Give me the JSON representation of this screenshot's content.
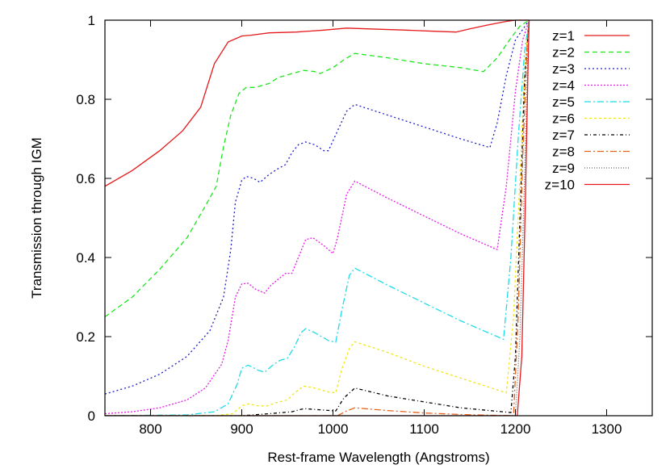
{
  "chart_data": {
    "type": "line",
    "title": "",
    "xlabel": "Rest-frame Wavelength (Angstroms)",
    "ylabel": "Transmission through IGM",
    "xlim": [
      750,
      1350
    ],
    "ylim": [
      0,
      1
    ],
    "xticks": [
      800,
      900,
      1000,
      1100,
      1200,
      1300
    ],
    "yticks": [
      0,
      0.2,
      0.4,
      0.6,
      0.8,
      1
    ],
    "ytick_labels": [
      "0",
      "0.2",
      "0.4",
      "0.6",
      "0.8",
      "1"
    ],
    "grid": false,
    "legend_position": "top-right",
    "series": [
      {
        "name": "z=1",
        "color": "#e41a1c",
        "dash": "solid",
        "points": [
          [
            750,
            0.58
          ],
          [
            780,
            0.62
          ],
          [
            810,
            0.67
          ],
          [
            835,
            0.72
          ],
          [
            855,
            0.78
          ],
          [
            870,
            0.89
          ],
          [
            885,
            0.945
          ],
          [
            900,
            0.96
          ],
          [
            910,
            0.962
          ],
          [
            930,
            0.968
          ],
          [
            960,
            0.97
          ],
          [
            990,
            0.975
          ],
          [
            1015,
            0.98
          ],
          [
            1040,
            0.978
          ],
          [
            1080,
            0.975
          ],
          [
            1110,
            0.972
          ],
          [
            1135,
            0.97
          ],
          [
            1150,
            0.978
          ],
          [
            1170,
            0.988
          ],
          [
            1190,
            0.997
          ],
          [
            1200,
            1.0
          ],
          [
            1215,
            1.0
          ]
        ]
      },
      {
        "name": "z=2",
        "color": "#1ee61e",
        "dash": "6,4",
        "points": [
          [
            750,
            0.25
          ],
          [
            780,
            0.3
          ],
          [
            810,
            0.37
          ],
          [
            840,
            0.45
          ],
          [
            860,
            0.53
          ],
          [
            872,
            0.58
          ],
          [
            880,
            0.68
          ],
          [
            888,
            0.76
          ],
          [
            897,
            0.815
          ],
          [
            905,
            0.83
          ],
          [
            915,
            0.83
          ],
          [
            930,
            0.84
          ],
          [
            940,
            0.855
          ],
          [
            955,
            0.865
          ],
          [
            968,
            0.873
          ],
          [
            980,
            0.87
          ],
          [
            986,
            0.865
          ],
          [
            1000,
            0.88
          ],
          [
            1012,
            0.9
          ],
          [
            1024,
            0.916
          ],
          [
            1060,
            0.905
          ],
          [
            1100,
            0.89
          ],
          [
            1140,
            0.88
          ],
          [
            1165,
            0.87
          ],
          [
            1180,
            0.905
          ],
          [
            1195,
            0.955
          ],
          [
            1205,
            0.985
          ],
          [
            1215,
            1.0
          ]
        ]
      },
      {
        "name": "z=3",
        "color": "#1e1ec8",
        "dash": "2,3",
        "points": [
          [
            750,
            0.055
          ],
          [
            780,
            0.075
          ],
          [
            810,
            0.105
          ],
          [
            840,
            0.15
          ],
          [
            865,
            0.215
          ],
          [
            880,
            0.3
          ],
          [
            888,
            0.42
          ],
          [
            893,
            0.54
          ],
          [
            900,
            0.595
          ],
          [
            905,
            0.605
          ],
          [
            913,
            0.6
          ],
          [
            920,
            0.59
          ],
          [
            930,
            0.61
          ],
          [
            940,
            0.625
          ],
          [
            948,
            0.635
          ],
          [
            955,
            0.665
          ],
          [
            962,
            0.685
          ],
          [
            970,
            0.692
          ],
          [
            980,
            0.685
          ],
          [
            990,
            0.67
          ],
          [
            995,
            0.67
          ],
          [
            1005,
            0.72
          ],
          [
            1015,
            0.77
          ],
          [
            1024,
            0.787
          ],
          [
            1060,
            0.76
          ],
          [
            1100,
            0.73
          ],
          [
            1140,
            0.7
          ],
          [
            1172,
            0.678
          ],
          [
            1180,
            0.74
          ],
          [
            1190,
            0.86
          ],
          [
            1200,
            0.95
          ],
          [
            1215,
            1.0
          ]
        ]
      },
      {
        "name": "z=4",
        "color": "#e61ee6",
        "dash": "2,2",
        "points": [
          [
            750,
            0.005
          ],
          [
            780,
            0.01
          ],
          [
            810,
            0.02
          ],
          [
            840,
            0.04
          ],
          [
            860,
            0.07
          ],
          [
            878,
            0.13
          ],
          [
            885,
            0.19
          ],
          [
            893,
            0.3
          ],
          [
            900,
            0.333
          ],
          [
            907,
            0.335
          ],
          [
            915,
            0.32
          ],
          [
            925,
            0.31
          ],
          [
            932,
            0.33
          ],
          [
            940,
            0.345
          ],
          [
            948,
            0.36
          ],
          [
            955,
            0.36
          ],
          [
            962,
            0.4
          ],
          [
            970,
            0.445
          ],
          [
            978,
            0.45
          ],
          [
            990,
            0.43
          ],
          [
            1000,
            0.41
          ],
          [
            1005,
            0.45
          ],
          [
            1015,
            0.56
          ],
          [
            1024,
            0.593
          ],
          [
            1060,
            0.55
          ],
          [
            1100,
            0.505
          ],
          [
            1140,
            0.46
          ],
          [
            1180,
            0.42
          ],
          [
            1190,
            0.58
          ],
          [
            1200,
            0.82
          ],
          [
            1208,
            0.95
          ],
          [
            1215,
            1.0
          ]
        ]
      },
      {
        "name": "z=5",
        "color": "#1edce6",
        "dash": "8,3,2,3",
        "points": [
          [
            750,
            0.0
          ],
          [
            840,
            0.002
          ],
          [
            870,
            0.01
          ],
          [
            885,
            0.03
          ],
          [
            895,
            0.08
          ],
          [
            900,
            0.12
          ],
          [
            907,
            0.128
          ],
          [
            918,
            0.115
          ],
          [
            925,
            0.11
          ],
          [
            935,
            0.13
          ],
          [
            942,
            0.14
          ],
          [
            950,
            0.145
          ],
          [
            958,
            0.175
          ],
          [
            965,
            0.21
          ],
          [
            970,
            0.22
          ],
          [
            980,
            0.21
          ],
          [
            995,
            0.19
          ],
          [
            1003,
            0.186
          ],
          [
            1010,
            0.27
          ],
          [
            1018,
            0.355
          ],
          [
            1024,
            0.373
          ],
          [
            1060,
            0.33
          ],
          [
            1100,
            0.285
          ],
          [
            1140,
            0.24
          ],
          [
            1187,
            0.193
          ],
          [
            1195,
            0.4
          ],
          [
            1203,
            0.7
          ],
          [
            1210,
            0.92
          ],
          [
            1215,
            1.0
          ]
        ]
      },
      {
        "name": "z=6",
        "color": "#f0e61e",
        "dash": "3,3",
        "points": [
          [
            750,
            0.0
          ],
          [
            870,
            0.0
          ],
          [
            890,
            0.005
          ],
          [
            900,
            0.025
          ],
          [
            907,
            0.03
          ],
          [
            918,
            0.025
          ],
          [
            928,
            0.025
          ],
          [
            938,
            0.033
          ],
          [
            950,
            0.04
          ],
          [
            958,
            0.058
          ],
          [
            968,
            0.075
          ],
          [
            980,
            0.07
          ],
          [
            995,
            0.06
          ],
          [
            1003,
            0.058
          ],
          [
            1010,
            0.12
          ],
          [
            1018,
            0.17
          ],
          [
            1024,
            0.187
          ],
          [
            1060,
            0.16
          ],
          [
            1100,
            0.125
          ],
          [
            1140,
            0.095
          ],
          [
            1190,
            0.058
          ],
          [
            1198,
            0.25
          ],
          [
            1205,
            0.6
          ],
          [
            1210,
            0.88
          ],
          [
            1215,
            1.0
          ]
        ]
      },
      {
        "name": "z=7",
        "color": "#000000",
        "dash": "4,3,1,3",
        "points": [
          [
            750,
            0.0
          ],
          [
            900,
            0.0
          ],
          [
            930,
            0.005
          ],
          [
            955,
            0.01
          ],
          [
            968,
            0.018
          ],
          [
            985,
            0.015
          ],
          [
            1003,
            0.012
          ],
          [
            1012,
            0.045
          ],
          [
            1024,
            0.07
          ],
          [
            1060,
            0.05
          ],
          [
            1100,
            0.035
          ],
          [
            1140,
            0.02
          ],
          [
            1195,
            0.008
          ],
          [
            1200,
            0.15
          ],
          [
            1205,
            0.5
          ],
          [
            1210,
            0.85
          ],
          [
            1215,
            1.0
          ]
        ]
      },
      {
        "name": "z=8",
        "color": "#e6641e",
        "dash": "8,3,2,3",
        "points": [
          [
            750,
            0.0
          ],
          [
            1005,
            0.0
          ],
          [
            1015,
            0.012
          ],
          [
            1024,
            0.02
          ],
          [
            1060,
            0.013
          ],
          [
            1100,
            0.007
          ],
          [
            1140,
            0.003
          ],
          [
            1198,
            0.0
          ],
          [
            1203,
            0.25
          ],
          [
            1208,
            0.65
          ],
          [
            1213,
            0.95
          ],
          [
            1215,
            1.0
          ]
        ]
      },
      {
        "name": "z=9",
        "color": "#646464",
        "dash": "1,2",
        "points": [
          [
            750,
            0.0
          ],
          [
            1150,
            0.0
          ],
          [
            1200,
            0.0
          ],
          [
            1205,
            0.2
          ],
          [
            1210,
            0.6
          ],
          [
            1214,
            0.95
          ],
          [
            1215,
            1.0
          ]
        ]
      },
      {
        "name": "z=10",
        "color": "#e41a1c",
        "dash": "solid",
        "points": [
          [
            750,
            0.0
          ],
          [
            1150,
            0.0
          ],
          [
            1202,
            0.0
          ],
          [
            1207,
            0.15
          ],
          [
            1211,
            0.55
          ],
          [
            1214,
            0.9
          ],
          [
            1215,
            1.0
          ]
        ]
      }
    ]
  }
}
